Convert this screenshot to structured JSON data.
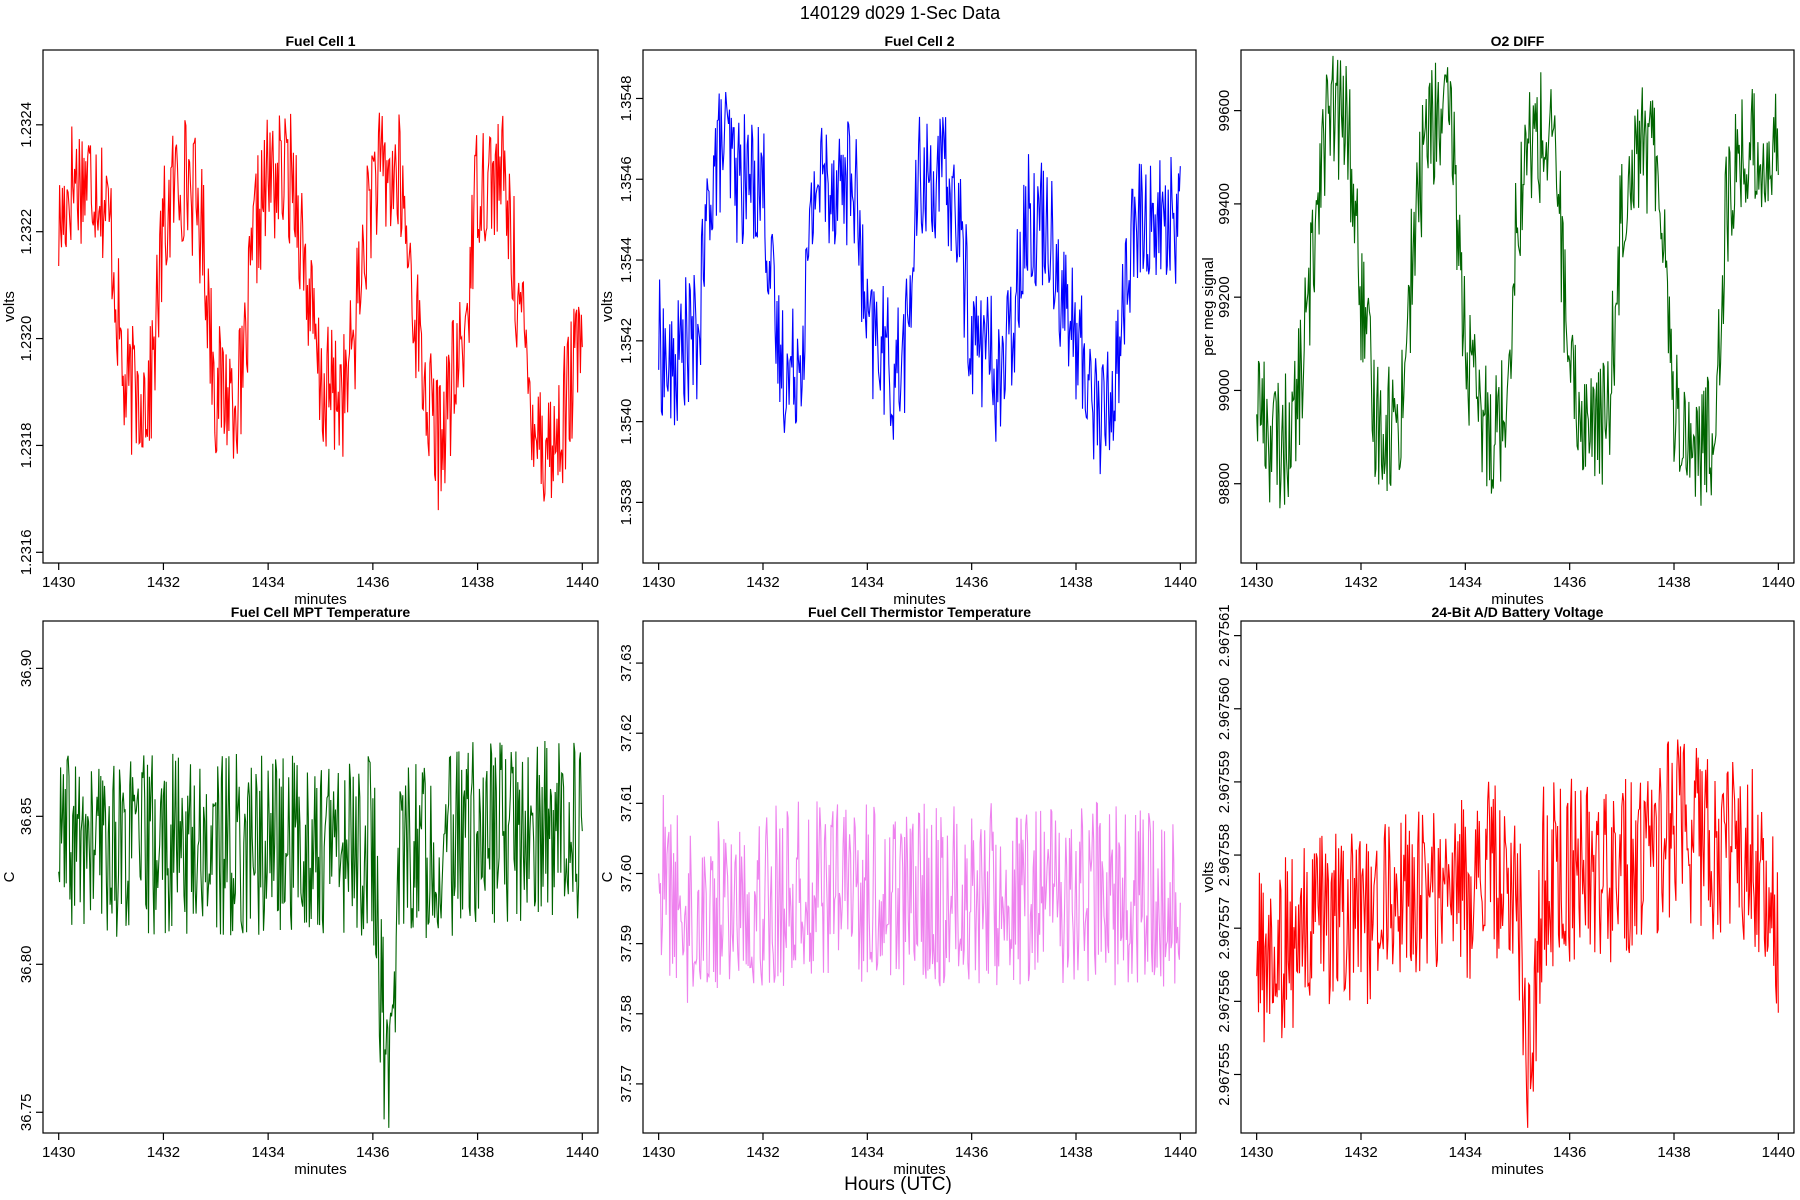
{
  "figure_title": "140129   d029   1-Sec Data",
  "figure_xlabel": "Hours (UTC)",
  "chart_data": [
    {
      "type": "line",
      "title": "Fuel Cell 1",
      "xlabel": "minutes",
      "ylabel": "volts",
      "color": "#ff0000",
      "xlim": [
        1429.7,
        1440.3
      ],
      "ylim": [
        1.23158,
        1.23254
      ],
      "xticks": [
        1430,
        1432,
        1434,
        1436,
        1438,
        1440
      ],
      "yticks": [
        1.2316,
        1.2318,
        1.232,
        1.2322,
        1.2324
      ],
      "ytick_labels": [
        "1.2316",
        "1.2318",
        "1.2320",
        "1.2322",
        "1.2324"
      ],
      "series": [
        {
          "name": "Fuel Cell 1",
          "x": [
            1430.0,
            1430.25,
            1430.5,
            1430.75,
            1431.0,
            1431.25,
            1431.5,
            1431.75,
            1432.0,
            1432.25,
            1432.5,
            1432.75,
            1433.0,
            1433.25,
            1433.5,
            1433.75,
            1434.0,
            1434.25,
            1434.5,
            1434.75,
            1435.0,
            1435.25,
            1435.5,
            1435.75,
            1436.0,
            1436.25,
            1436.5,
            1436.75,
            1437.0,
            1437.25,
            1437.5,
            1437.75,
            1438.0,
            1438.25,
            1438.5,
            1438.75,
            1439.0,
            1439.25,
            1439.5,
            1439.75,
            1440.0
          ],
          "y": [
            1.2322,
            1.2323,
            1.2323,
            1.2323,
            1.2322,
            1.2319,
            1.2319,
            1.2319,
            1.2322,
            1.2323,
            1.2323,
            1.2322,
            1.2319,
            1.2319,
            1.2319,
            1.2322,
            1.2323,
            1.2323,
            1.2323,
            1.2321,
            1.2319,
            1.2319,
            1.2319,
            1.2321,
            1.2323,
            1.2323,
            1.2323,
            1.2321,
            1.2319,
            1.2318,
            1.2319,
            1.232,
            1.2323,
            1.2323,
            1.2323,
            1.2321,
            1.2319,
            1.2318,
            1.2318,
            1.2319,
            1.232
          ]
        }
      ]
    },
    {
      "type": "line",
      "title": "Fuel Cell 2",
      "xlabel": "minutes",
      "ylabel": "volts",
      "color": "#0000ff",
      "xlim": [
        1429.7,
        1440.3
      ],
      "ylim": [
        1.35365,
        1.35492
      ],
      "xticks": [
        1430,
        1432,
        1434,
        1436,
        1438,
        1440
      ],
      "yticks": [
        1.3538,
        1.354,
        1.3542,
        1.3544,
        1.3546,
        1.3548
      ],
      "ytick_labels": [
        "1.3538",
        "1.3540",
        "1.3542",
        "1.3544",
        "1.3546",
        "1.3548"
      ],
      "series": [
        {
          "name": "Fuel Cell 2",
          "x": [
            1430.0,
            1430.25,
            1430.5,
            1430.75,
            1431.0,
            1431.25,
            1431.5,
            1431.75,
            1432.0,
            1432.25,
            1432.5,
            1432.75,
            1433.0,
            1433.25,
            1433.5,
            1433.75,
            1434.0,
            1434.25,
            1434.5,
            1434.75,
            1435.0,
            1435.25,
            1435.5,
            1435.75,
            1436.0,
            1436.25,
            1436.5,
            1436.75,
            1437.0,
            1437.25,
            1437.5,
            1437.75,
            1438.0,
            1438.25,
            1438.5,
            1438.75,
            1439.0,
            1439.25,
            1439.5,
            1439.75,
            1440.0
          ],
          "y": [
            1.3542,
            1.3541,
            1.3542,
            1.3542,
            1.3546,
            1.3547,
            1.3546,
            1.3546,
            1.3546,
            1.3542,
            1.3541,
            1.3542,
            1.3546,
            1.3546,
            1.3546,
            1.3546,
            1.3542,
            1.3542,
            1.3541,
            1.3542,
            1.3546,
            1.3546,
            1.3546,
            1.3545,
            1.3542,
            1.3542,
            1.3541,
            1.3542,
            1.3545,
            1.3545,
            1.3545,
            1.3543,
            1.3542,
            1.3541,
            1.354,
            1.3541,
            1.3544,
            1.3545,
            1.3545,
            1.3545,
            1.3545
          ]
        }
      ]
    },
    {
      "type": "line",
      "title": "O2 DIFF",
      "xlabel": "minutes",
      "ylabel": "per meg signal",
      "color": "#006400",
      "xlim": [
        1429.7,
        1440.3
      ],
      "ylim": [
        98630,
        99730
      ],
      "xticks": [
        1430,
        1432,
        1434,
        1436,
        1438,
        1440
      ],
      "yticks": [
        98800,
        99000,
        99200,
        99400,
        99600
      ],
      "ytick_labels": [
        "98800",
        "99000",
        "99200",
        "99400",
        "99600"
      ],
      "series": [
        {
          "name": "O2 DIFF",
          "x": [
            1430.0,
            1430.25,
            1430.5,
            1430.75,
            1431.0,
            1431.25,
            1431.5,
            1431.75,
            1432.0,
            1432.25,
            1432.5,
            1432.75,
            1433.0,
            1433.25,
            1433.5,
            1433.75,
            1434.0,
            1434.25,
            1434.5,
            1434.75,
            1435.0,
            1435.25,
            1435.5,
            1435.75,
            1436.0,
            1436.25,
            1436.5,
            1436.75,
            1437.0,
            1437.25,
            1437.5,
            1437.75,
            1438.0,
            1438.25,
            1438.5,
            1438.75,
            1439.0,
            1439.25,
            1439.5,
            1439.75,
            1440.0
          ],
          "y": [
            99000,
            98900,
            98880,
            98950,
            99180,
            99550,
            99590,
            99570,
            99200,
            98950,
            98920,
            98940,
            99300,
            99560,
            99580,
            99550,
            99100,
            98940,
            98920,
            98950,
            99380,
            99540,
            99540,
            99500,
            99000,
            98940,
            98920,
            98950,
            99400,
            99530,
            99520,
            99460,
            98970,
            98900,
            98880,
            98900,
            99380,
            99500,
            99510,
            99500,
            99500
          ]
        }
      ]
    },
    {
      "type": "line",
      "title": "Fuel Cell MPT Temperature",
      "xlabel": "minutes",
      "ylabel": "C",
      "color": "#006400",
      "xlim": [
        1429.7,
        1440.3
      ],
      "ylim": [
        36.743,
        36.916
      ],
      "xticks": [
        1430,
        1432,
        1434,
        1436,
        1438,
        1440
      ],
      "yticks": [
        36.75,
        36.8,
        36.85,
        36.9
      ],
      "ytick_labels": [
        "36.75",
        "36.80",
        "36.85",
        "36.90"
      ],
      "series": [
        {
          "name": "Fuel Cell MPT Temperature",
          "x": [
            1430.0,
            1430.5,
            1431.0,
            1431.5,
            1432.0,
            1432.5,
            1433.0,
            1433.5,
            1434.0,
            1434.5,
            1435.0,
            1435.5,
            1436.0,
            1436.3,
            1436.5,
            1437.0,
            1437.5,
            1438.0,
            1438.5,
            1439.0,
            1439.5,
            1440.0
          ],
          "y": [
            36.84,
            36.84,
            36.84,
            36.84,
            36.84,
            36.84,
            36.84,
            36.84,
            36.84,
            36.84,
            36.84,
            36.84,
            36.84,
            36.748,
            36.84,
            36.84,
            36.84,
            36.845,
            36.845,
            36.845,
            36.845,
            36.845
          ]
        }
      ]
    },
    {
      "type": "line",
      "title": "Fuel Cell Thermistor Temperature",
      "xlabel": "minutes",
      "ylabel": "C",
      "color": "#ee82ee",
      "xlim": [
        1429.7,
        1440.3
      ],
      "ylim": [
        37.563,
        37.636
      ],
      "xticks": [
        1430,
        1432,
        1434,
        1436,
        1438,
        1440
      ],
      "yticks": [
        37.57,
        37.58,
        37.59,
        37.6,
        37.61,
        37.62,
        37.63
      ],
      "ytick_labels": [
        "37.57",
        "37.58",
        "37.59",
        "37.60",
        "37.61",
        "37.62",
        "37.63"
      ],
      "series": [
        {
          "name": "Fuel Cell Thermistor Temperature",
          "x": [
            1430.0,
            1430.5,
            1431.0,
            1431.5,
            1432.0,
            1432.5,
            1433.0,
            1433.5,
            1434.0,
            1434.5,
            1435.0,
            1435.5,
            1436.0,
            1436.5,
            1437.0,
            1437.5,
            1438.0,
            1438.5,
            1439.0,
            1439.5,
            1440.0
          ],
          "y": [
            37.6,
            37.594,
            37.595,
            37.596,
            37.597,
            37.597,
            37.598,
            37.598,
            37.597,
            37.597,
            37.597,
            37.597,
            37.597,
            37.597,
            37.597,
            37.597,
            37.597,
            37.597,
            37.596,
            37.596,
            37.596
          ]
        }
      ]
    },
    {
      "type": "line",
      "title": "24-Bit A/D Battery Voltage",
      "xlabel": "minutes",
      "ylabel": "volts",
      "color": "#ff0000",
      "xlim": [
        1429.7,
        1440.3
      ],
      "ylim": [
        2.9675542,
        2.9675612
      ],
      "xticks": [
        1430,
        1432,
        1434,
        1436,
        1438,
        1440
      ],
      "yticks": [
        2.967555,
        2.967556,
        2.967557,
        2.967558,
        2.967559,
        2.96756,
        2.967561
      ],
      "ytick_labels": [
        "2.967555",
        "2.967556",
        "2.967557",
        "2.967558",
        "2.967559",
        "2.967560",
        "2.967561"
      ],
      "series": [
        {
          "name": "24-Bit A/D Battery Voltage",
          "x": [
            1430.0,
            1430.5,
            1431.0,
            1431.5,
            1432.0,
            1432.5,
            1433.0,
            1433.5,
            1434.0,
            1434.5,
            1435.0,
            1435.25,
            1435.5,
            1436.0,
            1436.5,
            1437.0,
            1437.5,
            1438.0,
            1438.5,
            1439.0,
            1439.5,
            1440.0
          ],
          "y": [
            2.9675565,
            2.9675567,
            2.9675569,
            2.9675572,
            2.967557,
            2.9675575,
            2.9675574,
            2.9675576,
            2.9675575,
            2.9675578,
            2.9675576,
            2.9675548,
            2.9675577,
            2.9675578,
            2.9675577,
            2.9675578,
            2.9675579,
            2.9675584,
            2.9675582,
            2.967558,
            2.9675581,
            2.967557
          ]
        }
      ]
    }
  ]
}
